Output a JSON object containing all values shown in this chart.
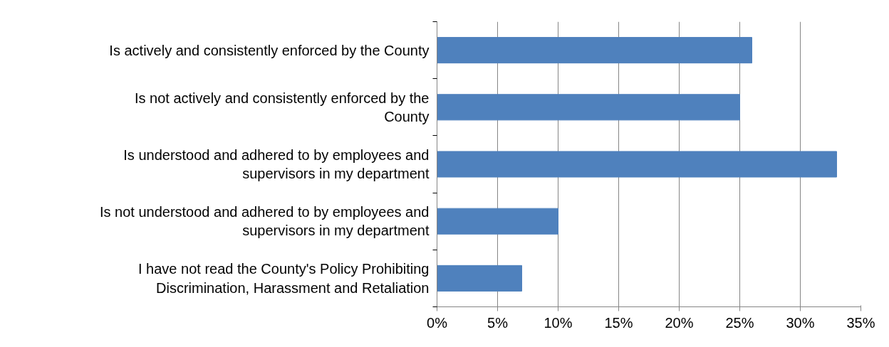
{
  "chart_data": {
    "type": "bar",
    "orientation": "horizontal",
    "categories": [
      "Is actively and consistently enforced by the County",
      "Is not actively and consistently enforced by the County",
      "Is understood and adhered to by employees and supervisors in my department",
      "Is not understood and adhered to by employees and supervisors in my department",
      "I have not read the County's Policy Prohibiting Discrimination, Harassment and Retaliation"
    ],
    "values": [
      26,
      25,
      33,
      10,
      7
    ],
    "color": "#4f81bd",
    "xlim": [
      0,
      35
    ],
    "xticks": [
      {
        "value": 0,
        "label": "0%"
      },
      {
        "value": 5,
        "label": "5%"
      },
      {
        "value": 10,
        "label": "10%"
      },
      {
        "value": 15,
        "label": "15%"
      },
      {
        "value": 20,
        "label": "20%"
      },
      {
        "value": 25,
        "label": "25%"
      },
      {
        "value": 30,
        "label": "30%"
      },
      {
        "value": 35,
        "label": "35%"
      }
    ],
    "grid": "x"
  }
}
